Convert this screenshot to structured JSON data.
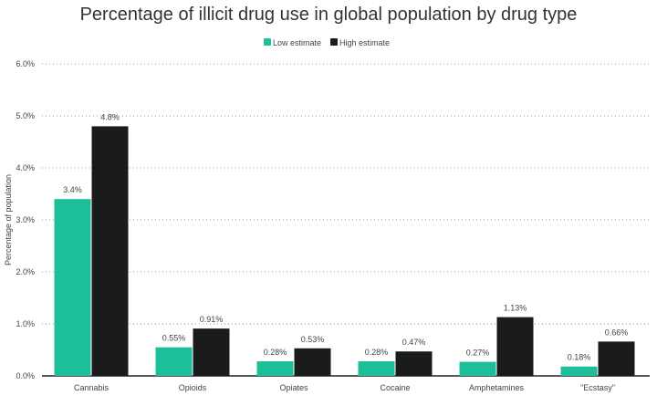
{
  "chart_data": {
    "type": "bar",
    "title": "Percentage of illicit drug use in global population by drug type",
    "xlabel": "",
    "ylabel": "Percentage of population",
    "ylim": [
      0,
      6
    ],
    "yticks": [
      "0.0%",
      "1.0%",
      "2.0%",
      "3.0%",
      "4.0%",
      "5.0%",
      "6.0%"
    ],
    "grid": true,
    "legend_position": "top",
    "categories": [
      "Cannabis",
      "Opioids",
      "Opiates",
      "Cocaine",
      "Amphetamines",
      "\"Ecstasy\""
    ],
    "series": [
      {
        "name": "Low estimate",
        "color": "#1dbf9b",
        "values": [
          3.4,
          0.55,
          0.28,
          0.28,
          0.27,
          0.18
        ],
        "labels": [
          "3.4%",
          "0.55%",
          "0.28%",
          "0.28%",
          "0.27%",
          "0.18%"
        ]
      },
      {
        "name": "High estimate",
        "color": "#1a1c1c",
        "values": [
          4.8,
          0.91,
          0.53,
          0.47,
          1.13,
          0.66
        ],
        "labels": [
          "4.8%",
          "0.91%",
          "0.53%",
          "0.47%",
          "1.13%",
          "0.66%"
        ]
      }
    ]
  }
}
